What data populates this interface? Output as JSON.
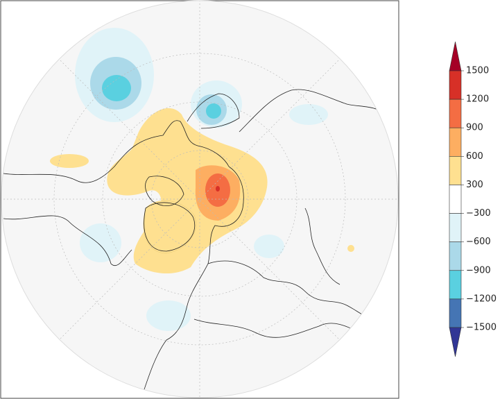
{
  "colorbar": {
    "ticks": [
      "1500",
      "1200",
      "900",
      "600",
      "300",
      "−300",
      "−600",
      "−900",
      "−1200",
      "−1500"
    ],
    "colors": [
      "#a50026",
      "#d73027",
      "#f46d43",
      "#fdae61",
      "#fee090",
      "#ffffff",
      "#e0f3f8",
      "#abd9e9",
      "#5ad0e0",
      "#4575b4",
      "#313695"
    ]
  }
}
